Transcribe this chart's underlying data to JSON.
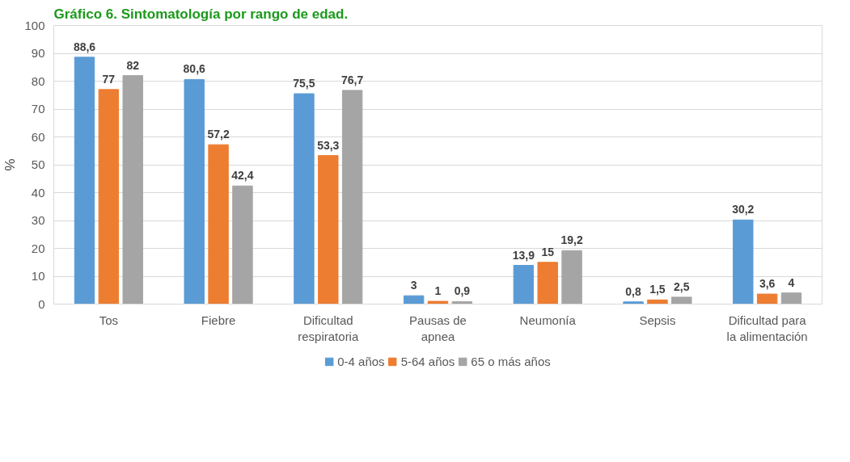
{
  "chart_data": {
    "type": "bar",
    "title": "Gráfico 6. Sintomatología por rango de edad.",
    "ylabel": "%",
    "categories": [
      "Tos",
      "Fiebre",
      "Dificultad\nrespiratoria",
      "Pausas de\napnea",
      "Neumonía",
      "Sepsis",
      "Dificultad para\nla alimentación"
    ],
    "series": [
      {
        "name": "0-4 años",
        "color": "#5b9bd5",
        "values": [
          88.6,
          80.6,
          75.5,
          3,
          13.9,
          0.8,
          30.2
        ],
        "value_labels": [
          "88,6",
          "80,6",
          "75,5",
          "3",
          "13,9",
          "0,8",
          "30,2"
        ]
      },
      {
        "name": "5-64 años",
        "color": "#ed7d31",
        "values": [
          77,
          57.2,
          53.3,
          1,
          15,
          1.5,
          3.6
        ],
        "value_labels": [
          "77",
          "57,2",
          "53,3",
          "1",
          "15",
          "1,5",
          "3,6"
        ]
      },
      {
        "name": "65 o más años",
        "color": "#a5a5a5",
        "values": [
          82,
          42.4,
          76.7,
          0.9,
          19.2,
          2.5,
          4
        ],
        "value_labels": [
          "82",
          "42,4",
          "76,7",
          "0,9",
          "19,2",
          "2,5",
          "4"
        ]
      }
    ],
    "ylim": [
      0,
      100
    ],
    "yticks": [
      0,
      10,
      20,
      30,
      40,
      50,
      60,
      70,
      80,
      90,
      100
    ],
    "grid": "y",
    "legend": "bottom"
  }
}
